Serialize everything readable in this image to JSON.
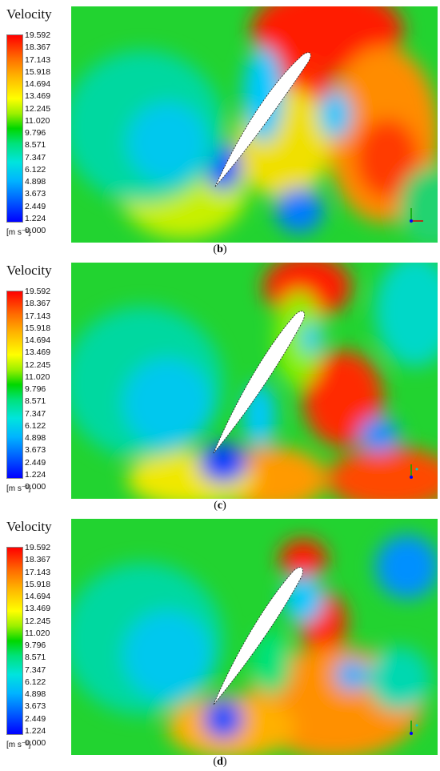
{
  "legend": {
    "title": "Velocity",
    "ticks": [
      "19.592",
      "18.367",
      "17.143",
      "15.918",
      "14.694",
      "13.469",
      "12.245",
      "11.020",
      "9.796",
      "8.571",
      "7.347",
      "6.122",
      "4.898",
      "3.673",
      "2.449",
      "1.224",
      "0.000"
    ],
    "unit": "[m s⁻¹]",
    "colors": [
      "#ff0000",
      "#ff6a00",
      "#ffb400",
      "#ffff00",
      "#9cf000",
      "#00d700",
      "#00e27a",
      "#00e4dd",
      "#00b4ff",
      "#0064ff",
      "#0000ff"
    ]
  },
  "panels": [
    {
      "label": "b",
      "caption_open": "(",
      "caption_close": ")"
    },
    {
      "label": "c",
      "caption_open": "(",
      "caption_close": ")"
    },
    {
      "label": "d",
      "caption_open": "(",
      "caption_close": ")"
    }
  ]
}
